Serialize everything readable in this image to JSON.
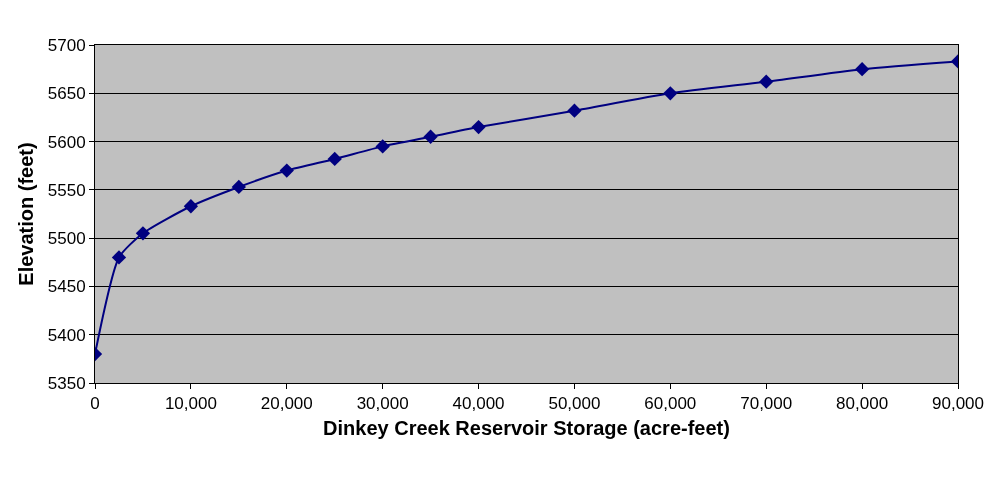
{
  "chart_data": {
    "type": "line",
    "xlabel": "Dinkey Creek Reservoir Storage (acre-feet)",
    "ylabel": "Elevation (feet)",
    "x": [
      0,
      2500,
      5000,
      10000,
      15000,
      20000,
      25000,
      30000,
      35000,
      40000,
      50000,
      60000,
      70000,
      80000,
      90000
    ],
    "series": [
      {
        "color": "#000080",
        "values": [
          5380,
          5480,
          5505,
          5533,
          5553,
          5570,
          5582,
          5595,
          5605,
          5615,
          5632,
          5650,
          5662,
          5675,
          5683
        ]
      }
    ],
    "xlim": [
      0,
      90000
    ],
    "xticks": [
      {
        "value": 0,
        "label": "0"
      },
      {
        "value": 10000,
        "label": "10,000"
      },
      {
        "value": 20000,
        "label": "20,000"
      },
      {
        "value": 30000,
        "label": "30,000"
      },
      {
        "value": 40000,
        "label": "40,000"
      },
      {
        "value": 50000,
        "label": "50,000"
      },
      {
        "value": 60000,
        "label": "60,000"
      },
      {
        "value": 70000,
        "label": "70,000"
      },
      {
        "value": 80000,
        "label": "80,000"
      },
      {
        "value": 90000,
        "label": "90,000"
      }
    ],
    "ylim": [
      5350,
      5700
    ],
    "yticks": [
      5350,
      5400,
      5450,
      5500,
      5550,
      5600,
      5650,
      5700
    ],
    "grid": "y",
    "legend": false,
    "marker": "diamond",
    "line_style": "solid"
  }
}
